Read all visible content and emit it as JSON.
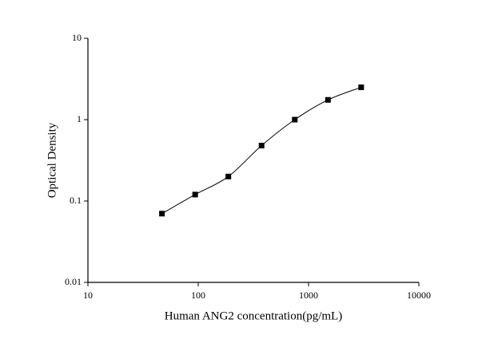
{
  "chart_data": {
    "type": "scatter",
    "x_label": "Human ANG2 concentration(pg/mL)",
    "y_label": "Optical Density",
    "x": [
      46.875,
      93.75,
      187.5,
      375,
      750,
      1500,
      3000
    ],
    "values": [
      0.07,
      0.12,
      0.2,
      0.48,
      1.0,
      1.75,
      2.5
    ],
    "color": "#000000",
    "xscale": "log",
    "yscale": "log",
    "xlim": [
      10,
      10000
    ],
    "xticks": [
      10,
      100,
      1000,
      10000
    ],
    "ylim": [
      0.01,
      10
    ],
    "yticks": [
      0.01,
      0.1,
      1,
      10
    ],
    "fit_line": true
  }
}
